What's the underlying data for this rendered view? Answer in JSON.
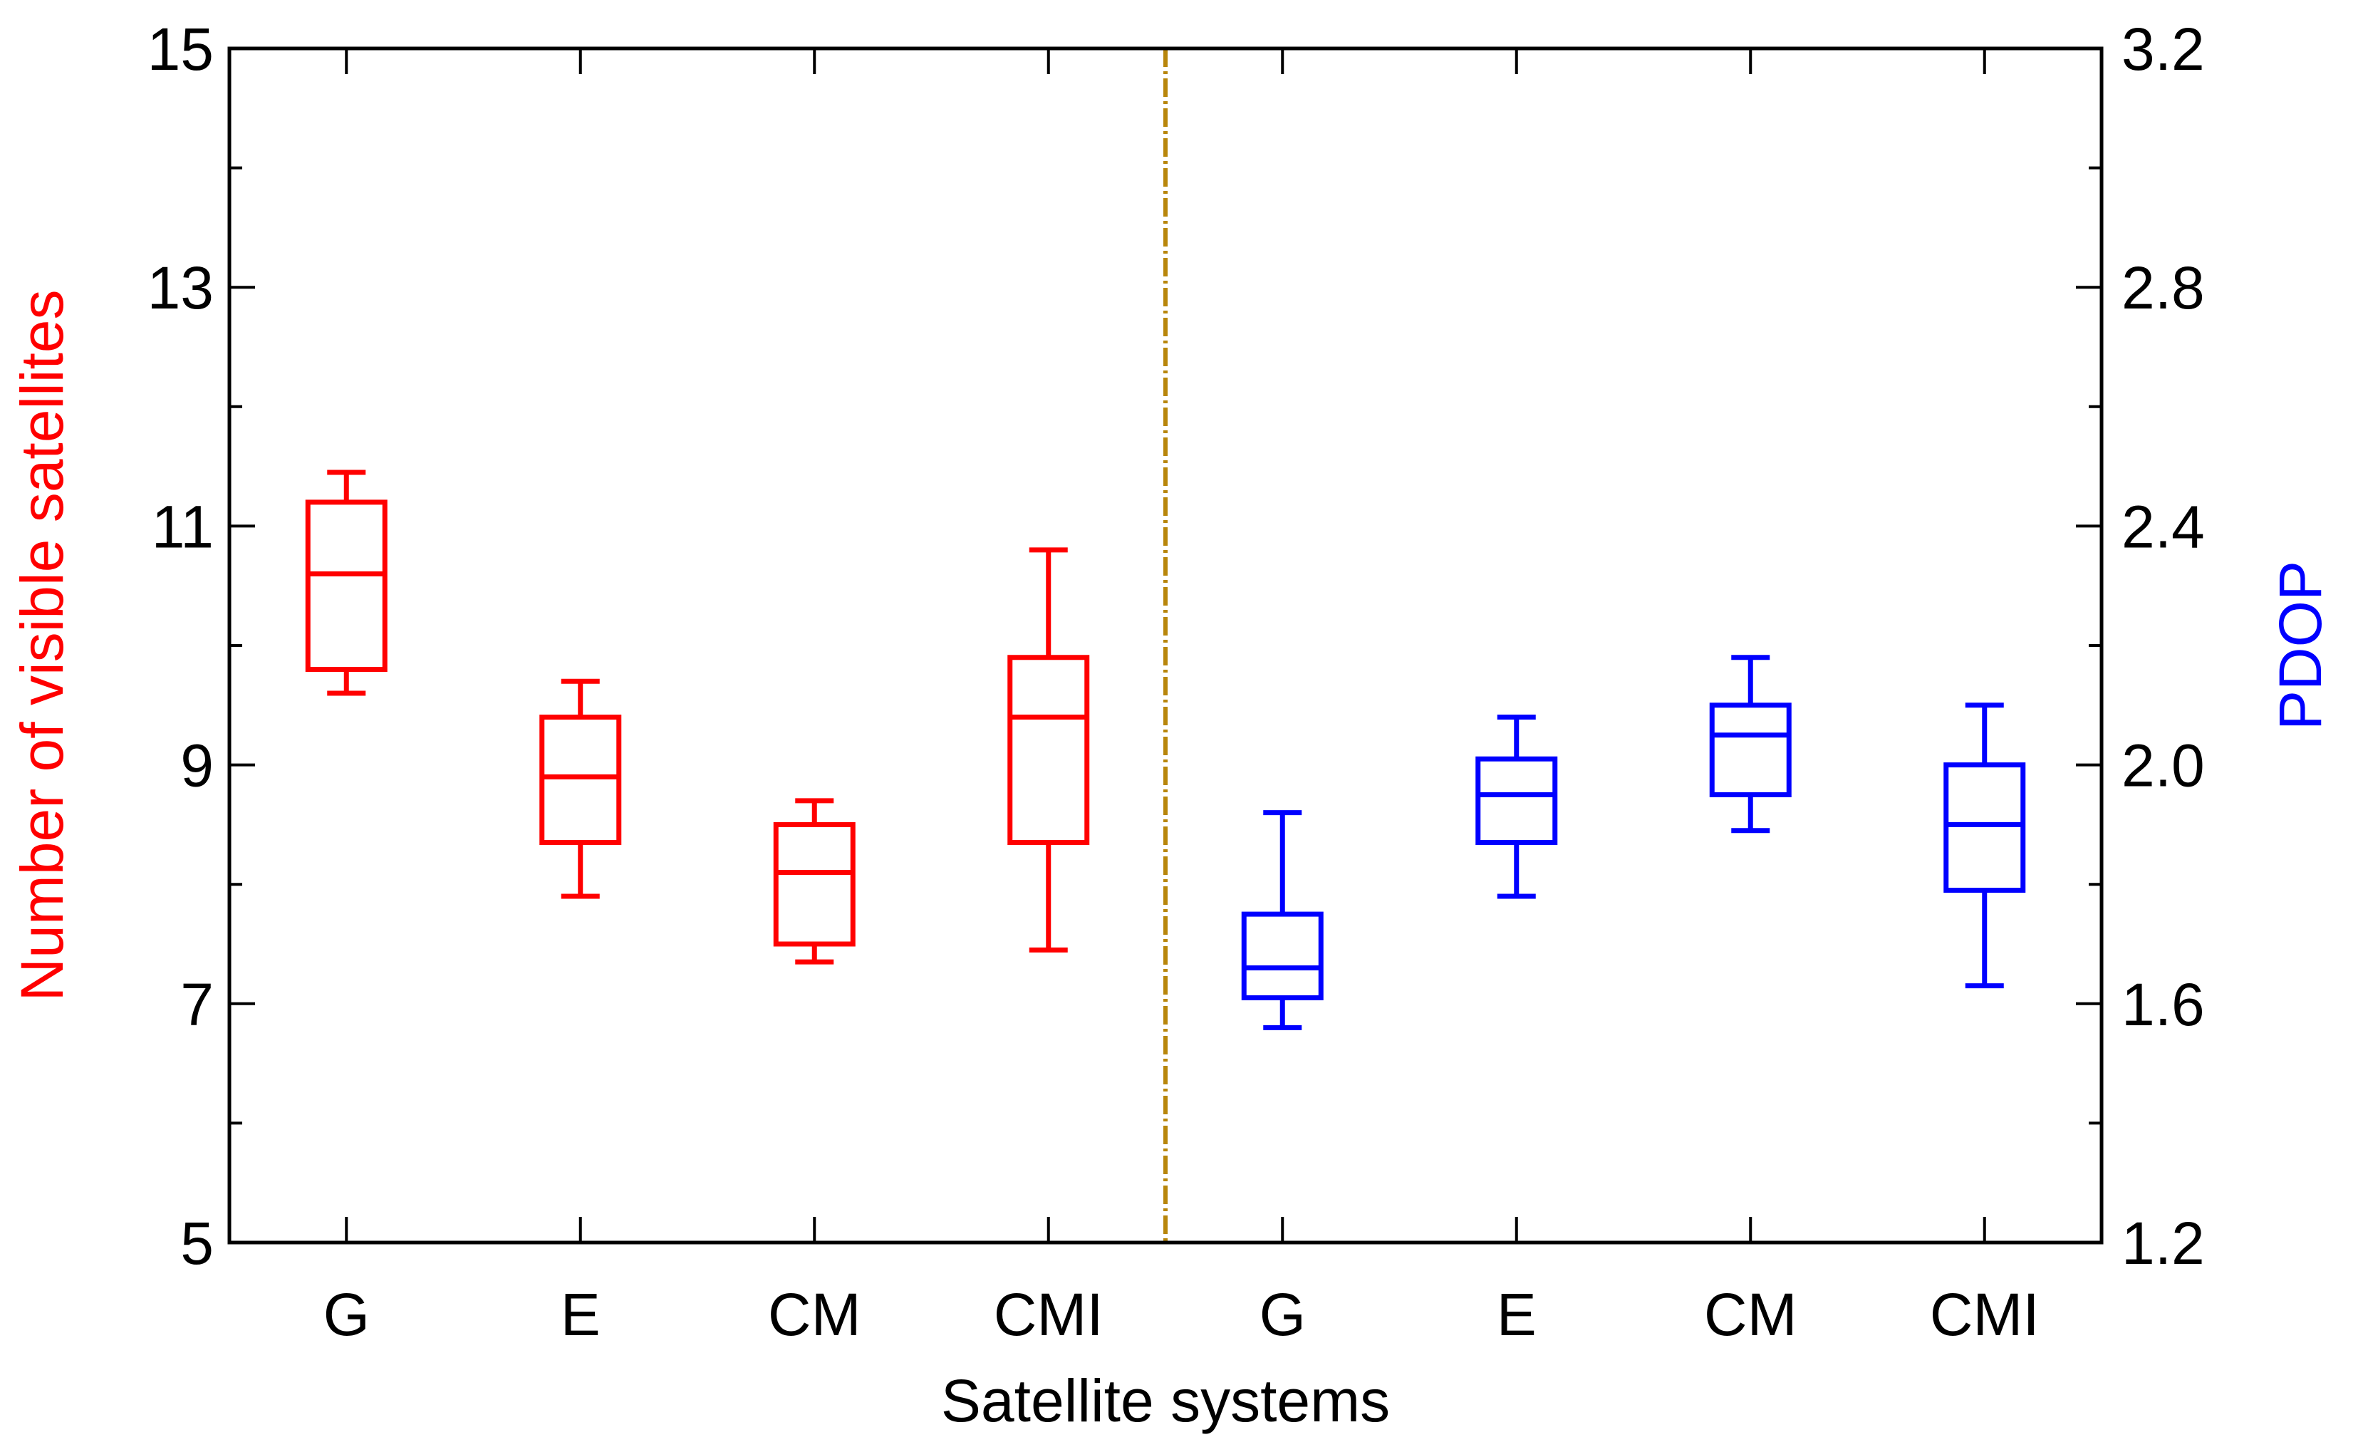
{
  "chart_data": {
    "type": "boxplot",
    "xlabel": "Satellite systems",
    "categories": [
      "G",
      "E",
      "CM",
      "CMI",
      "G",
      "E",
      "CM",
      "CMI"
    ],
    "left_axis": {
      "label": "Number of visible satellites",
      "color": "#ff0000",
      "ylim": [
        5,
        15
      ],
      "ticks": [
        5,
        7,
        9,
        11,
        13,
        15
      ],
      "minor_step": 1
    },
    "right_axis": {
      "label": "PDOP",
      "color": "#0000ff",
      "ylim": [
        1.2,
        3.2
      ],
      "ticks": [
        "1.2",
        "1.6",
        "2.0",
        "2.4",
        "2.8",
        "3.2"
      ],
      "minor_step": 0.2
    },
    "divider": {
      "after_category_index": 3,
      "style": "dash-dot",
      "color": "#b8860b"
    },
    "series": [
      {
        "name": "Number of visible satellites",
        "axis": "left",
        "color": "#ff0000",
        "boxes": [
          {
            "category": "G",
            "whisker_low": 9.6,
            "q1": 9.8,
            "median": 10.6,
            "q3": 11.2,
            "whisker_high": 11.45
          },
          {
            "category": "E",
            "whisker_low": 7.9,
            "q1": 8.35,
            "median": 8.9,
            "q3": 9.4,
            "whisker_high": 9.7
          },
          {
            "category": "CM",
            "whisker_low": 7.35,
            "q1": 7.5,
            "median": 8.1,
            "q3": 8.5,
            "whisker_high": 8.7
          },
          {
            "category": "CMI",
            "whisker_low": 7.45,
            "q1": 8.35,
            "median": 9.4,
            "q3": 9.9,
            "whisker_high": 10.8
          }
        ]
      },
      {
        "name": "PDOP",
        "axis": "right",
        "color": "#0000ff",
        "boxes": [
          {
            "category": "G",
            "whisker_low": 1.56,
            "q1": 1.61,
            "median": 1.66,
            "q3": 1.75,
            "whisker_high": 1.92
          },
          {
            "category": "E",
            "whisker_low": 1.78,
            "q1": 1.87,
            "median": 1.95,
            "q3": 2.01,
            "whisker_high": 2.08
          },
          {
            "category": "CM",
            "whisker_low": 1.89,
            "q1": 1.95,
            "median": 2.05,
            "q3": 2.1,
            "whisker_high": 2.18
          },
          {
            "category": "CMI",
            "whisker_low": 1.63,
            "q1": 1.79,
            "median": 1.9,
            "q3": 2.0,
            "whisker_high": 2.1
          }
        ]
      }
    ]
  }
}
